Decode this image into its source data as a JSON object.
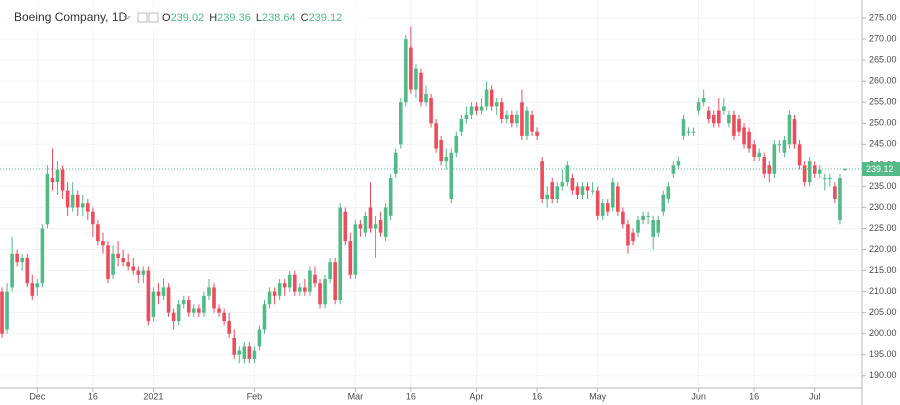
{
  "chart_data": {
    "type": "candlestick",
    "title": "Boeing Company, 1D",
    "ohlc_labels": [
      "O",
      "H",
      "L",
      "C"
    ],
    "up_color": "#53b987",
    "down_color": "#eb4d5c",
    "grid": true,
    "ylim": [
      187.1,
      278.1
    ],
    "yticks": [
      {
        "value": 190,
        "label": "190.00"
      },
      {
        "value": 195,
        "label": "195.00"
      },
      {
        "value": 200,
        "label": "200.00"
      },
      {
        "value": 205,
        "label": "205.00"
      },
      {
        "value": 210,
        "label": "210.00"
      },
      {
        "value": 215,
        "label": "215.00"
      },
      {
        "value": 220,
        "label": "220.00"
      },
      {
        "value": 225,
        "label": "225.00"
      },
      {
        "value": 230,
        "label": "230.00"
      },
      {
        "value": 235,
        "label": "235.00"
      },
      {
        "value": 240,
        "label": "240.00"
      },
      {
        "value": 245,
        "label": "245.00"
      },
      {
        "value": 250,
        "label": "250.00"
      },
      {
        "value": 255,
        "label": "255.00"
      },
      {
        "value": 260,
        "label": "260.00"
      },
      {
        "value": 265,
        "label": "265.00"
      },
      {
        "value": 270,
        "label": "270.00"
      },
      {
        "value": 275,
        "label": "275.00"
      }
    ],
    "xticks": [
      {
        "value": 7,
        "label": "Dec"
      },
      {
        "value": 18,
        "label": "16"
      },
      {
        "value": 30,
        "label": "2021"
      },
      {
        "value": 50,
        "label": "Feb"
      },
      {
        "value": 70,
        "label": "Mar"
      },
      {
        "value": 81,
        "label": "16"
      },
      {
        "value": 94,
        "label": "Apr"
      },
      {
        "value": 106,
        "label": "16"
      },
      {
        "value": 118,
        "label": "May"
      },
      {
        "value": 138,
        "label": "Jun"
      },
      {
        "value": 149,
        "label": "16"
      },
      {
        "value": 161,
        "label": "Jul"
      }
    ],
    "candles": [
      [
        210,
        211,
        199,
        200
      ],
      [
        201,
        212,
        200,
        210
      ],
      [
        211,
        223,
        210,
        219
      ],
      [
        219,
        220,
        216,
        217
      ],
      [
        217,
        219,
        215,
        218
      ],
      [
        218,
        219,
        211,
        212
      ],
      [
        212,
        214,
        208,
        209
      ],
      [
        211,
        213,
        209,
        212
      ],
      [
        212,
        226,
        211,
        225
      ],
      [
        226,
        240,
        225,
        238
      ],
      [
        237,
        244,
        234,
        236
      ],
      [
        236,
        241,
        233,
        239
      ],
      [
        239,
        240,
        232,
        234
      ],
      [
        234,
        236,
        228,
        230
      ],
      [
        230,
        236,
        229,
        233
      ],
      [
        233,
        234,
        228,
        230
      ],
      [
        230,
        233,
        228,
        231
      ],
      [
        231,
        232,
        227,
        229
      ],
      [
        229,
        230,
        223,
        226
      ],
      [
        226,
        227,
        221,
        222
      ],
      [
        222,
        224,
        219,
        221
      ],
      [
        221,
        222,
        212,
        213
      ],
      [
        214,
        221,
        213,
        219
      ],
      [
        219,
        222,
        216,
        218
      ],
      [
        218,
        220,
        216,
        217
      ],
      [
        217,
        219,
        215,
        216
      ],
      [
        216,
        218,
        214,
        215
      ],
      [
        215,
        216,
        212,
        214
      ],
      [
        214,
        216,
        212,
        215
      ],
      [
        215,
        216,
        202,
        203
      ],
      [
        204,
        211,
        203,
        210
      ],
      [
        210,
        212,
        207,
        209
      ],
      [
        209,
        213,
        208,
        211
      ],
      [
        211,
        212,
        204,
        205
      ],
      [
        205,
        206,
        201,
        203
      ],
      [
        203,
        208,
        202,
        207
      ],
      [
        207,
        209,
        206,
        208
      ],
      [
        208,
        209,
        204,
        205
      ],
      [
        205,
        207,
        204,
        206
      ],
      [
        206,
        207,
        204,
        205
      ],
      [
        205,
        210,
        204,
        209
      ],
      [
        209,
        213,
        208,
        211
      ],
      [
        211,
        212,
        205,
        206
      ],
      [
        206,
        207,
        204,
        205
      ],
      [
        205,
        206,
        202,
        203
      ],
      [
        203,
        205,
        199,
        200
      ],
      [
        199,
        201,
        194,
        195
      ],
      [
        195,
        197,
        193,
        196
      ],
      [
        194,
        198,
        193,
        197
      ],
      [
        197,
        198,
        193,
        194
      ],
      [
        194,
        197,
        193,
        196
      ],
      [
        197,
        202,
        196,
        201
      ],
      [
        201,
        208,
        200,
        207
      ],
      [
        207,
        211,
        206,
        210
      ],
      [
        210,
        211,
        207,
        209
      ],
      [
        209,
        213,
        208,
        212
      ],
      [
        212,
        213,
        209,
        211
      ],
      [
        211,
        215,
        210,
        214
      ],
      [
        214,
        215,
        209,
        210
      ],
      [
        210,
        212,
        209,
        211
      ],
      [
        211,
        213,
        209,
        210
      ],
      [
        210,
        216,
        209,
        215
      ],
      [
        214,
        216,
        211,
        212
      ],
      [
        212,
        213,
        206,
        207
      ],
      [
        207,
        214,
        206,
        213
      ],
      [
        213,
        218,
        212,
        217
      ],
      [
        217,
        218,
        207,
        208
      ],
      [
        208,
        231,
        207,
        230
      ],
      [
        229,
        230,
        221,
        222
      ],
      [
        222,
        224,
        213,
        214
      ],
      [
        214,
        227,
        213,
        226
      ],
      [
        226,
        227,
        223,
        225
      ],
      [
        224,
        229,
        223,
        228
      ],
      [
        230,
        236,
        224,
        225
      ],
      [
        225,
        228,
        218,
        226
      ],
      [
        227,
        229,
        223,
        224
      ],
      [
        223,
        231,
        222,
        230
      ],
      [
        228,
        238,
        227,
        237
      ],
      [
        238,
        244,
        237,
        243
      ],
      [
        245,
        256,
        244,
        255
      ],
      [
        255,
        271,
        254,
        270
      ],
      [
        268,
        273,
        257,
        258
      ],
      [
        258,
        264,
        256,
        263
      ],
      [
        262,
        263,
        254,
        255
      ],
      [
        255,
        259,
        254,
        257
      ],
      [
        256,
        257,
        249,
        250
      ],
      [
        250,
        251,
        243,
        244
      ],
      [
        246,
        247,
        240,
        241
      ],
      [
        241,
        244,
        239,
        242
      ],
      [
        232,
        244,
        231,
        243
      ],
      [
        243,
        248,
        242,
        247
      ],
      [
        248,
        252,
        247,
        251
      ],
      [
        251,
        254,
        250,
        252
      ],
      [
        252,
        255,
        251,
        254
      ],
      [
        254,
        255,
        252,
        253
      ],
      [
        253,
        256,
        252,
        254
      ],
      [
        254,
        260,
        253,
        258
      ],
      [
        258,
        259,
        253,
        254
      ],
      [
        254,
        256,
        252,
        255
      ],
      [
        255,
        256,
        250,
        251
      ],
      [
        251,
        253,
        250,
        252
      ],
      [
        252,
        253,
        249,
        250
      ],
      [
        250,
        253,
        249,
        252
      ],
      [
        255,
        258,
        246,
        247
      ],
      [
        247,
        254,
        246,
        253
      ],
      [
        252,
        253,
        247,
        248
      ],
      [
        248,
        249,
        246,
        247
      ],
      [
        241,
        242,
        231,
        232
      ],
      [
        232,
        235,
        230,
        233
      ],
      [
        236,
        237,
        231,
        232
      ],
      [
        232,
        236,
        231,
        235
      ],
      [
        235,
        239,
        234,
        236
      ],
      [
        236,
        241,
        235,
        240
      ],
      [
        237,
        238,
        233,
        234
      ],
      [
        235,
        236,
        232,
        233
      ],
      [
        233,
        236,
        232,
        235
      ],
      [
        235,
        236,
        232,
        234
      ],
      [
        234,
        236,
        233,
        234
      ],
      [
        234,
        235,
        227,
        228
      ],
      [
        228,
        232,
        227,
        231
      ],
      [
        231,
        232,
        228,
        229
      ],
      [
        230,
        237,
        229,
        236
      ],
      [
        235,
        236,
        228,
        229
      ],
      [
        229,
        230,
        225,
        226
      ],
      [
        226,
        227,
        219,
        221
      ],
      [
        224,
        225,
        221,
        222
      ],
      [
        224,
        228,
        223,
        227
      ],
      [
        227,
        229,
        226,
        228
      ],
      [
        228,
        229,
        226,
        228
      ],
      [
        223,
        228,
        220,
        227
      ],
      [
        224,
        228,
        223,
        227
      ],
      [
        229,
        234,
        228,
        233
      ],
      [
        232,
        236,
        231,
        235
      ],
      [
        238,
        241,
        237,
        240
      ],
      [
        240,
        242,
        239,
        241
      ],
      [
        247,
        252,
        246,
        251
      ],
      [
        248,
        249,
        247,
        248
      ],
      [
        248,
        249,
        247,
        248
      ],
      [
        253,
        256,
        252,
        255
      ],
      [
        255,
        258,
        254,
        256
      ],
      [
        253,
        254,
        250,
        251
      ],
      [
        252,
        253,
        249,
        250
      ],
      [
        253,
        256,
        249,
        250
      ],
      [
        253,
        256,
        252,
        254
      ],
      [
        250,
        253,
        249,
        252
      ],
      [
        252,
        253,
        246,
        247
      ],
      [
        251,
        252,
        247,
        248
      ],
      [
        249,
        250,
        244,
        245
      ],
      [
        248,
        249,
        243,
        244
      ],
      [
        245,
        246,
        241,
        242
      ],
      [
        242,
        244,
        241,
        243
      ],
      [
        242,
        243,
        237,
        238
      ],
      [
        240,
        241,
        236,
        238
      ],
      [
        238,
        246,
        237,
        245
      ],
      [
        245,
        246,
        243,
        245
      ],
      [
        243,
        247,
        242,
        246
      ],
      [
        245,
        253,
        244,
        252
      ],
      [
        251,
        252,
        244,
        245
      ],
      [
        245,
        246,
        239,
        240
      ],
      [
        240,
        241,
        235,
        236
      ],
      [
        236,
        242,
        235,
        241
      ],
      [
        240,
        241,
        237,
        238
      ],
      [
        238,
        240,
        237,
        239
      ],
      [
        237,
        238,
        234,
        237
      ],
      [
        237,
        238,
        235,
        237
      ],
      [
        235,
        236,
        231,
        232
      ],
      [
        227,
        238,
        226,
        237
      ],
      [
        239.02,
        239.36,
        238.64,
        239.12
      ]
    ]
  }
}
